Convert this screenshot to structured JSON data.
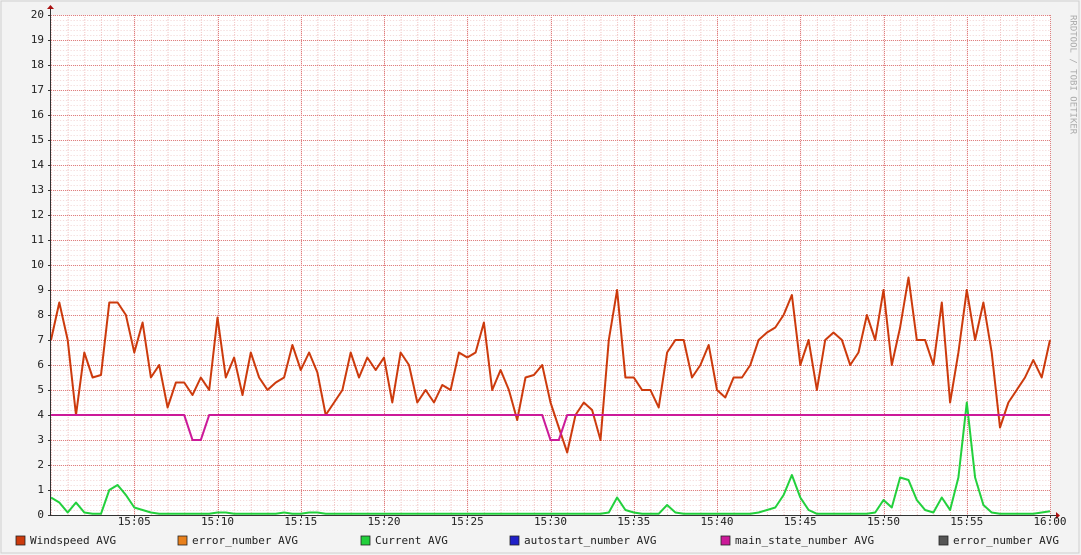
{
  "chart_data": {
    "type": "line",
    "watermark": "RRDTOOL / TOBI OETIKER",
    "x": [
      0,
      0.5,
      1,
      1.5,
      2,
      2.5,
      3,
      3.5,
      4,
      4.5,
      5,
      5.5,
      6,
      6.5,
      7,
      7.5,
      8,
      8.5,
      9,
      9.5,
      10,
      10.5,
      11,
      11.5,
      12,
      12.5,
      13,
      13.5,
      14,
      14.5,
      15,
      15.5,
      16,
      16.5,
      17,
      17.5,
      18,
      18.5,
      19,
      19.5,
      20,
      20.5,
      21,
      21.5,
      22,
      22.5,
      23,
      23.5,
      24,
      24.5,
      25,
      25.5,
      26,
      26.5,
      27,
      27.5,
      28,
      28.5,
      29,
      29.5,
      30,
      30.5,
      31,
      31.5,
      32,
      32.5,
      33,
      33.5,
      34,
      34.5,
      35,
      35.5,
      36,
      36.5,
      37,
      37.5,
      38,
      38.5,
      39,
      39.5,
      40,
      40.5,
      41,
      41.5,
      42,
      42.5,
      43,
      43.5,
      44,
      44.5,
      45,
      45.5,
      46,
      46.5,
      47,
      47.5,
      48,
      48.5,
      49,
      49.5,
      50,
      50.5,
      51,
      51.5,
      52,
      52.5,
      53,
      53.5,
      54,
      54.5,
      55,
      55.5,
      56,
      56.5,
      57,
      57.5,
      58,
      58.5,
      59,
      59.5,
      60
    ],
    "xlim": [
      0,
      60
    ],
    "xticks": [
      {
        "value": 5,
        "label": "15:05"
      },
      {
        "value": 10,
        "label": "15:10"
      },
      {
        "value": 15,
        "label": "15:15"
      },
      {
        "value": 20,
        "label": "15:20"
      },
      {
        "value": 25,
        "label": "15:25"
      },
      {
        "value": 30,
        "label": "15:30"
      },
      {
        "value": 35,
        "label": "15:35"
      },
      {
        "value": 40,
        "label": "15:40"
      },
      {
        "value": 45,
        "label": "15:45"
      },
      {
        "value": 50,
        "label": "15:50"
      },
      {
        "value": 55,
        "label": "15:55"
      },
      {
        "value": 60,
        "label": "16:00"
      }
    ],
    "ylim": [
      0,
      20
    ],
    "yticks": [
      0,
      1,
      2,
      3,
      4,
      5,
      6,
      7,
      8,
      9,
      10,
      11,
      12,
      13,
      14,
      15,
      16,
      17,
      18,
      19,
      20
    ],
    "grid": true,
    "legend": "bottom",
    "series": [
      {
        "name": "Windspeed AVG",
        "color": "#cc3a0c",
        "values": [
          7,
          8.5,
          7,
          4,
          6.5,
          5.5,
          5.6,
          8.5,
          8.5,
          8,
          6.5,
          7.7,
          5.5,
          6,
          4.3,
          5.3,
          5.3,
          4.8,
          5.5,
          5,
          7.9,
          5.5,
          6.3,
          4.8,
          6.5,
          5.5,
          5,
          5.3,
          5.5,
          6.8,
          5.8,
          6.5,
          5.7,
          4,
          4.5,
          5,
          6.5,
          5.5,
          6.3,
          5.8,
          6.3,
          4.5,
          6.5,
          6,
          4.5,
          5,
          4.5,
          5.2,
          5,
          6.5,
          6.3,
          6.5,
          7.7,
          5,
          5.8,
          5,
          3.8,
          5.5,
          5.6,
          6,
          4.5,
          3.5,
          2.5,
          4,
          4.5,
          4.2,
          3,
          7,
          9,
          5.5,
          5.5,
          5,
          5,
          4.3,
          6.5,
          7,
          7,
          5.5,
          6,
          6.8,
          5,
          4.7,
          5.5,
          5.5,
          6,
          7,
          7.3,
          7.5,
          8,
          8.8,
          6,
          7,
          5,
          7,
          7.3,
          7,
          6,
          6.5,
          8,
          7,
          9,
          6,
          7.5,
          9.5,
          7,
          7,
          6,
          8.5,
          4.5,
          6.5,
          9,
          7,
          8.5,
          6.5,
          3.5,
          4.5,
          5,
          5.5,
          6.2,
          5.5,
          7
        ]
      },
      {
        "name": "error_number AVG",
        "color": "#e8801c",
        "values": [
          null,
          null,
          null,
          null,
          null,
          null,
          null,
          null,
          null,
          null,
          null,
          null,
          null,
          null,
          null,
          null,
          null,
          null,
          null,
          null,
          null,
          null,
          null,
          null,
          null,
          null,
          null,
          null,
          null,
          null,
          null,
          null,
          null,
          null,
          null,
          null,
          null,
          null,
          null,
          null,
          null,
          null,
          null,
          null,
          null,
          null,
          null,
          null,
          null,
          null,
          null,
          null,
          null,
          null,
          null,
          null,
          null,
          null,
          null,
          null,
          null,
          null,
          null,
          null,
          null,
          null,
          null,
          null,
          null,
          null,
          null,
          null,
          null,
          null,
          null,
          null,
          null,
          null,
          null,
          null,
          null,
          null,
          null,
          null,
          null,
          null,
          null,
          null,
          null,
          null,
          null,
          null,
          null,
          null,
          null,
          null,
          null,
          null,
          null,
          null,
          null,
          null,
          null,
          null,
          null,
          null,
          null,
          null,
          null,
          null,
          null,
          null,
          null,
          null,
          null,
          null,
          null,
          null,
          null,
          null,
          null
        ]
      },
      {
        "name": "Current AVG",
        "color": "#22d03c",
        "values": [
          0.7,
          0.5,
          0.1,
          0.5,
          0.1,
          0.05,
          0.05,
          1,
          1.2,
          0.8,
          0.3,
          0.2,
          0.1,
          0.05,
          0.05,
          0.05,
          0.05,
          0.05,
          0.05,
          0.05,
          0.1,
          0.1,
          0.05,
          0.05,
          0.05,
          0.05,
          0.05,
          0.05,
          0.1,
          0.05,
          0.05,
          0.1,
          0.1,
          0.05,
          0.05,
          0.05,
          0.05,
          0.05,
          0.05,
          0.05,
          0.05,
          0.05,
          0.05,
          0.05,
          0.05,
          0.05,
          0.05,
          0.05,
          0.05,
          0.05,
          0.05,
          0.05,
          0.05,
          0.05,
          0.05,
          0.05,
          0.05,
          0.05,
          0.05,
          0.05,
          0.05,
          0.05,
          0.05,
          0.05,
          0.05,
          0.05,
          0.05,
          0.1,
          0.7,
          0.2,
          0.1,
          0.05,
          0.05,
          0.05,
          0.4,
          0.1,
          0.05,
          0.05,
          0.05,
          0.05,
          0.05,
          0.05,
          0.05,
          0.05,
          0.05,
          0.1,
          0.2,
          0.3,
          0.8,
          1.6,
          0.7,
          0.2,
          0.05,
          0.05,
          0.05,
          0.05,
          0.05,
          0.05,
          0.05,
          0.1,
          0.6,
          0.3,
          1.5,
          1.4,
          0.6,
          0.2,
          0.1,
          0.7,
          0.2,
          1.5,
          4.5,
          1.5,
          0.4,
          0.1,
          0.05,
          0.05,
          0.05,
          0.05,
          0.05,
          0.1,
          0.15
        ]
      },
      {
        "name": "autostart_number AVG",
        "color": "#2020c8",
        "values": [
          null,
          null,
          null,
          null,
          null,
          null,
          null,
          null,
          null,
          null,
          null,
          null,
          null,
          null,
          null,
          null,
          null,
          null,
          null,
          null,
          null,
          null,
          null,
          null,
          null,
          null,
          null,
          null,
          null,
          null,
          null,
          null,
          null,
          null,
          null,
          null,
          null,
          null,
          null,
          null,
          null,
          null,
          null,
          null,
          null,
          null,
          null,
          null,
          null,
          null,
          null,
          null,
          null,
          null,
          null,
          null,
          null,
          null,
          null,
          null,
          null,
          null,
          null,
          null,
          null,
          null,
          null,
          null,
          null,
          null,
          null,
          null,
          null,
          null,
          null,
          null,
          null,
          null,
          null,
          null,
          null,
          null,
          null,
          null,
          null,
          null,
          null,
          null,
          null,
          null,
          null,
          null,
          null,
          null,
          null,
          null,
          null,
          null,
          null,
          null,
          null,
          null,
          null,
          null,
          null,
          null,
          null,
          null,
          null,
          null,
          null,
          null,
          null,
          null,
          null,
          null,
          null,
          null,
          null,
          null,
          null
        ]
      },
      {
        "name": "main_state_number AVG",
        "color": "#cc1a99",
        "values": [
          4,
          4,
          4,
          4,
          4,
          4,
          4,
          4,
          4,
          4,
          4,
          4,
          4,
          4,
          4,
          4,
          4,
          3,
          3,
          4,
          4,
          4,
          4,
          4,
          4,
          4,
          4,
          4,
          4,
          4,
          4,
          4,
          4,
          4,
          4,
          4,
          4,
          4,
          4,
          4,
          4,
          4,
          4,
          4,
          4,
          4,
          4,
          4,
          4,
          4,
          4,
          4,
          4,
          4,
          4,
          4,
          4,
          4,
          4,
          4,
          3,
          3,
          4,
          4,
          4,
          4,
          4,
          4,
          4,
          4,
          4,
          4,
          4,
          4,
          4,
          4,
          4,
          4,
          4,
          4,
          4,
          4,
          4,
          4,
          4,
          4,
          4,
          4,
          4,
          4,
          4,
          4,
          4,
          4,
          4,
          4,
          4,
          4,
          4,
          4,
          4,
          4,
          4,
          4,
          4,
          4,
          4,
          4,
          4,
          4,
          4,
          4,
          4,
          4,
          4,
          4,
          4,
          4,
          4,
          4,
          4
        ]
      },
      {
        "name": "error_number AVG",
        "color": "#555555",
        "values": [
          null,
          null,
          null,
          null,
          null,
          null,
          null,
          null,
          null,
          null,
          null,
          null,
          null,
          null,
          null,
          null,
          null,
          null,
          null,
          null,
          null,
          null,
          null,
          null,
          null,
          null,
          null,
          null,
          null,
          null,
          null,
          null,
          null,
          null,
          null,
          null,
          null,
          null,
          null,
          null,
          null,
          null,
          null,
          null,
          null,
          null,
          null,
          null,
          null,
          null,
          null,
          null,
          null,
          null,
          null,
          null,
          null,
          null,
          null,
          null,
          null,
          null,
          null,
          null,
          null,
          null,
          null,
          null,
          null,
          null,
          null,
          null,
          null,
          null,
          null,
          null,
          null,
          null,
          null,
          null,
          null,
          null,
          null,
          null,
          null,
          null,
          null,
          null,
          null,
          null,
          null,
          null,
          null,
          null,
          null,
          null,
          null,
          null,
          null,
          null,
          null,
          null,
          null,
          null,
          null,
          null,
          null,
          null,
          null,
          null,
          null,
          null,
          null,
          null,
          null,
          null,
          null,
          null,
          null,
          null,
          null
        ]
      }
    ]
  }
}
